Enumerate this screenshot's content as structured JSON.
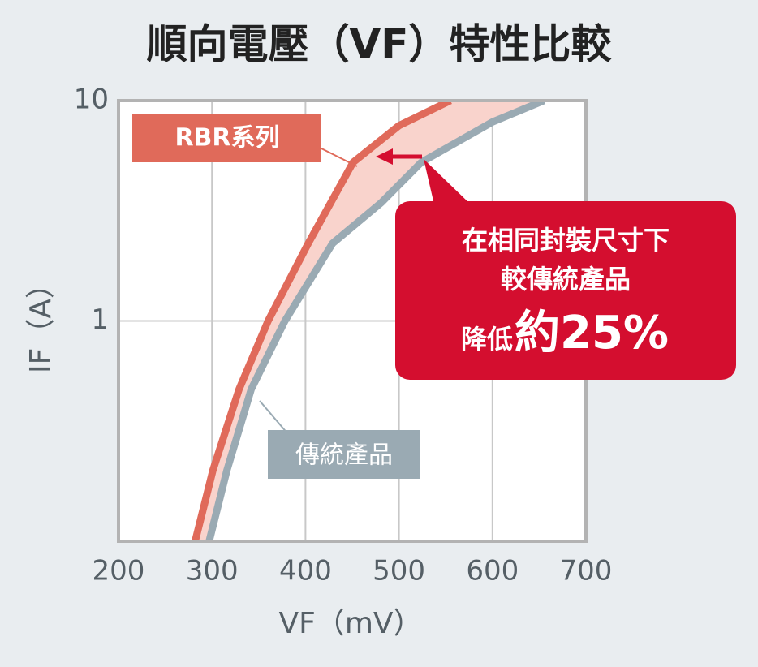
{
  "chart_data": {
    "type": "line",
    "title": "順向電壓（VF）特性比較",
    "x_label": "VF（mV）",
    "y_label": "IF（A）",
    "xlim": [
      200,
      700
    ],
    "xticks": [
      200,
      300,
      400,
      500,
      600,
      700
    ],
    "ylim": [
      0.1,
      10
    ],
    "yticks": [
      1,
      10
    ],
    "y_scale": "log",
    "grid": true,
    "series": [
      {
        "name": "傳統產品",
        "color": "#9aaab3",
        "x": [
          297,
          316,
          342,
          378,
          429,
          481,
          524,
          600,
          655
        ],
        "values": [
          0.1,
          0.21,
          0.49,
          1,
          2.25,
          3.44,
          5.25,
          8,
          10
        ]
      },
      {
        "name": "RBR系列",
        "color": "#e06a5a",
        "x": [
          282,
          301,
          329,
          360,
          403,
          451,
          500,
          555
        ],
        "values": [
          0.1,
          0.21,
          0.49,
          1,
          2.25,
          5.25,
          7.7,
          10
        ]
      }
    ],
    "band_color": "#f9d3cc",
    "callout": {
      "lines": [
        "在相同封裝尺寸下",
        "較傳統產品"
      ],
      "prefix": "降低",
      "emphasis": "約25%",
      "color": "#d40e2f"
    }
  }
}
